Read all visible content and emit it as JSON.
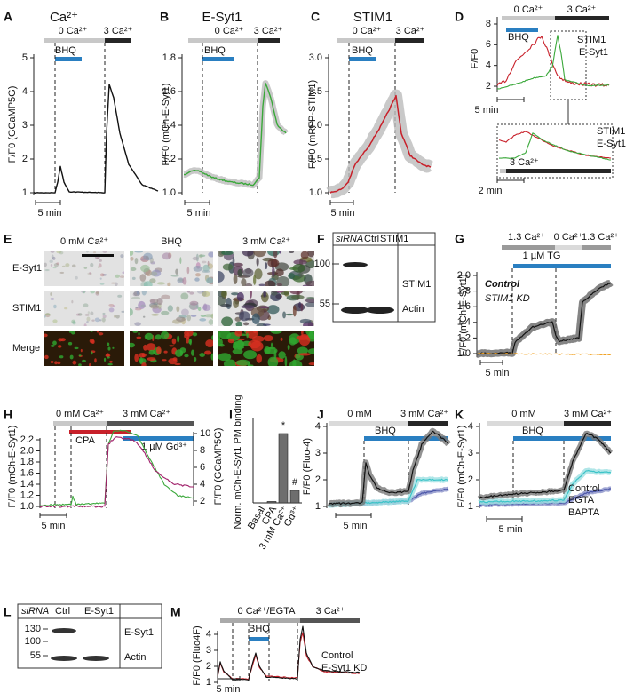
{
  "panels": {
    "A": {
      "letter": "A",
      "title": "Ca²⁺",
      "conditions": [
        "0 Ca²⁺",
        "3 Ca²⁺"
      ],
      "treatment": "BHQ",
      "y_label": "F/F0 (GCaMP5G)",
      "yticks": [
        1,
        2,
        3,
        4,
        5
      ],
      "scale_bar": "5 min"
    },
    "B": {
      "letter": "B",
      "title": "E-Syt1",
      "conditions": [
        "0 Ca²⁺",
        "3 Ca²⁺"
      ],
      "treatment": "BHQ",
      "y_label": "F/F0 (mCh-E-Syt1)",
      "yticks": [
        {
          "value": 1,
          "label": "1.0"
        },
        1.2,
        1.4,
        1.6,
        1.8
      ],
      "scale_bar": "5 min"
    },
    "C": {
      "letter": "C",
      "title": "STIM1",
      "conditions": [
        "0 Ca²⁺",
        "3 Ca²⁺"
      ],
      "treatment": "BHQ",
      "y_label": "F/F0 (mRFP-STIM1)",
      "yticks": [
        {
          "value": 1,
          "label": "1.0"
        },
        1.5,
        {
          "value": 2,
          "label": "2.0"
        },
        2.5,
        {
          "value": 3,
          "label": "3.0"
        }
      ],
      "scale_bar": "5 min"
    },
    "D": {
      "letter": "D",
      "conditions": [
        "0 Ca²⁺",
        "3 Ca²⁺"
      ],
      "treatment": "BHQ",
      "y_label": "F/F0",
      "yticks": [
        2,
        4,
        6,
        8
      ],
      "legend": [
        "STIM1",
        "E-Syt1"
      ],
      "scale_bar": "5 min",
      "inset": {
        "legend": [
          "STIM1",
          "E-Syt1"
        ],
        "condition": "3 Ca²⁺",
        "scale_bar": "2 min"
      }
    },
    "E": {
      "letter": "E",
      "columns": [
        "0 mM Ca²⁺",
        "BHQ",
        "3 mM Ca²⁺"
      ],
      "rows": [
        "E-Syt1",
        "STIM1",
        "Merge"
      ]
    },
    "F": {
      "letter": "F",
      "header": [
        "siRNA",
        "Ctrl",
        "STIM1"
      ],
      "markers": [
        100,
        55
      ],
      "bands": [
        "STIM1",
        "Actin"
      ]
    },
    "G": {
      "letter": "G",
      "conditions": [
        "1.3 Ca²⁺",
        "0 Ca²⁺",
        "1.3 Ca²⁺"
      ],
      "treatment": "1 µM TG",
      "legend": [
        "Control",
        "STIM1 KD"
      ],
      "y_label": "F/F0 (mCh-E-Syt1)",
      "yticks": [
        {
          "value": 1,
          "label": "1.0"
        },
        1.2,
        1.4,
        1.6,
        1.8,
        {
          "value": 2,
          "label": "2.0"
        }
      ],
      "scale_bar": "5 min"
    },
    "H": {
      "letter": "H",
      "conditions": [
        "0 mM Ca²⁺",
        "3 mM Ca²⁺"
      ],
      "treatments": [
        "CPA",
        "1 µM Gd³⁺"
      ],
      "y_label": "F/F0 (mCh-E-Syt1)",
      "y2_label": "F/F0 (GCaMP5G)",
      "yticks": [
        {
          "value": 1,
          "label": "1.0"
        },
        1.2,
        1.4,
        1.6,
        1.8,
        {
          "value": 2,
          "label": "2.0"
        },
        2.2
      ],
      "y2ticks": [
        2,
        4,
        6,
        8,
        10
      ],
      "scale_bar": "5 min"
    },
    "I": {
      "letter": "I",
      "y_label": "Norm. mCh-E-Syt1 PM binding",
      "categories": [
        "Basal",
        "CPA",
        "3 mM Ca²⁺",
        "Gd³⁺"
      ],
      "values": [
        0,
        0.02,
        1,
        0.18
      ],
      "annotations": [
        "*",
        "#"
      ]
    },
    "J": {
      "letter": "J",
      "conditions": [
        "0 mM",
        "3 mM Ca²⁺"
      ],
      "treatment": "BHQ",
      "y_label": "F/F0 (Fluo-4)",
      "yticks": [
        1,
        2,
        3,
        4
      ],
      "scale_bar": "5 min"
    },
    "K": {
      "letter": "K",
      "conditions": [
        "0 mM",
        "3 mM Ca²⁺"
      ],
      "treatment": "BHQ",
      "y_label": "F/F0 (mCh-E-Syt1)",
      "yticks": [
        1,
        2,
        3,
        4
      ],
      "legend": [
        "Control",
        "EGTA",
        "BAPTA"
      ],
      "scale_bar": "5 min"
    },
    "L": {
      "letter": "L",
      "header": [
        "siRNA",
        "Ctrl",
        "E-Syt1"
      ],
      "markers": [
        130,
        100,
        55
      ],
      "bands": [
        "E-Syt1",
        "Actin"
      ]
    },
    "M": {
      "letter": "M",
      "conditions": [
        "0 Ca²⁺/EGTA",
        "3 Ca²⁺"
      ],
      "treatment": "BHQ",
      "y_label": "F/F0 (Fluo4F)",
      "yticks": [
        1,
        2,
        3,
        4
      ],
      "legend": [
        "Control",
        "E-Syt1 KD"
      ],
      "scale_bar": "5 min"
    }
  }
}
